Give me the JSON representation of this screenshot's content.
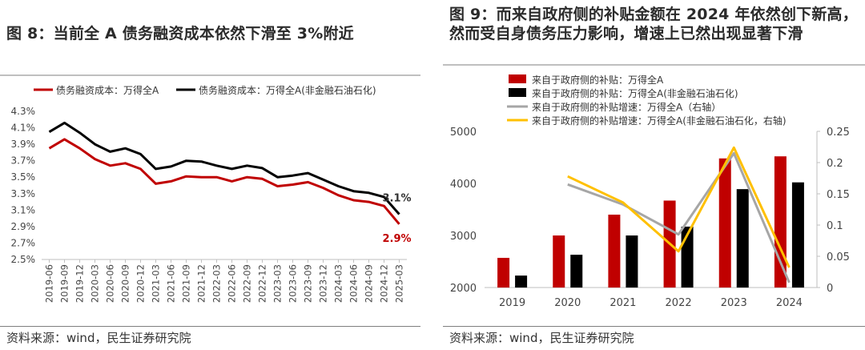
{
  "chart_data": [
    {
      "type": "line",
      "title": "图 8：当前全 A 债务融资成本依然下滑至 3%附近",
      "source": "资料来源：wind，民生证券研究院",
      "x": [
        "2019-06",
        "2019-09",
        "2019-12",
        "2020-03",
        "2020-06",
        "2020-09",
        "2020-12",
        "2021-03",
        "2021-06",
        "2021-09",
        "2021-12",
        "2022-03",
        "2022-06",
        "2022-09",
        "2022-12",
        "2023-03",
        "2023-06",
        "2023-09",
        "2023-12",
        "2024-03",
        "2024-06",
        "2024-09",
        "2024-12",
        "2025-03"
      ],
      "ylim": [
        2.5,
        4.3
      ],
      "yticks": [
        "2.5%",
        "2.7%",
        "2.9%",
        "3.1%",
        "3.3%",
        "3.5%",
        "3.7%",
        "3.9%",
        "4.1%",
        "4.3%"
      ],
      "legend_position": "top",
      "series": [
        {
          "name": "债务融资成本：万得全A",
          "color": "#c00000",
          "values": [
            3.85,
            3.96,
            3.85,
            3.72,
            3.64,
            3.67,
            3.6,
            3.42,
            3.45,
            3.51,
            3.5,
            3.5,
            3.45,
            3.5,
            3.48,
            3.39,
            3.41,
            3.44,
            3.37,
            3.28,
            3.22,
            3.2,
            3.15,
            2.93
          ]
        },
        {
          "name": "债务融资成本：万得全A(非金融石油石化)",
          "color": "#000000",
          "values": [
            4.05,
            4.16,
            4.04,
            3.9,
            3.81,
            3.85,
            3.78,
            3.6,
            3.63,
            3.7,
            3.69,
            3.64,
            3.6,
            3.64,
            3.61,
            3.5,
            3.52,
            3.55,
            3.47,
            3.39,
            3.33,
            3.31,
            3.26,
            3.05
          ]
        }
      ],
      "annotations": [
        {
          "text": "3.1%",
          "series": 1,
          "color": "#333333"
        },
        {
          "text": "2.9%",
          "series": 0,
          "color": "#c00000"
        }
      ]
    },
    {
      "type": "bar",
      "title": "图 9：而来自政府侧的补贴金额在 2024 年依然创下新高，然而受自身债务压力影响，增速上已然出现显著下滑",
      "source": "资料来源：wind，民生证券研究院",
      "categories": [
        "2019",
        "2020",
        "2021",
        "2022",
        "2023",
        "2024"
      ],
      "ylim": [
        2000,
        5000
      ],
      "yticks": [
        "2000",
        "3000",
        "4000",
        "5000"
      ],
      "y2lim": [
        0,
        0.25
      ],
      "y2ticks": [
        "0",
        "0.05",
        "0.1",
        "0.15",
        "0.2",
        "0.25"
      ],
      "legend_position": "top-left",
      "series": [
        {
          "name": "来自于政府侧的补贴：万得全A",
          "kind": "bar",
          "axis": "left",
          "color": "#c00000",
          "values": [
            2570,
            3000,
            3400,
            3670,
            4480,
            4520
          ]
        },
        {
          "name": "来自于政府侧的补贴：万得全A(非金融石油石化)",
          "kind": "bar",
          "axis": "left",
          "color": "#000000",
          "values": [
            2230,
            2630,
            3000,
            3170,
            3890,
            4020
          ]
        },
        {
          "name": "来自于政府侧的补贴增速：万得全A（右轴）",
          "kind": "line",
          "axis": "right",
          "color": "#a6a6a6",
          "values": [
            null,
            0.165,
            0.133,
            0.085,
            0.215,
            0.008
          ]
        },
        {
          "name": "来自于政府侧的补贴增速：万得全A(非金融石油石化，右轴)",
          "kind": "line",
          "axis": "right",
          "color": "#ffc000",
          "values": [
            null,
            0.178,
            0.136,
            0.058,
            0.224,
            0.032
          ]
        }
      ]
    }
  ]
}
